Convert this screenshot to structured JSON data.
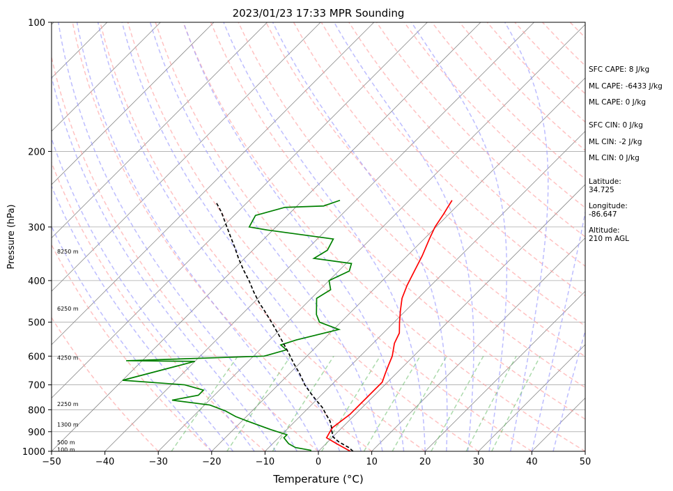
{
  "chart_data": {
    "type": "line",
    "title": "2023/01/23 17:33 MPR Sounding",
    "xlabel": "Temperature (°C)",
    "ylabel": "Pressure (hPa)",
    "xlim": [
      -50,
      50
    ],
    "ylim": [
      1000,
      100
    ],
    "y_scale": "log",
    "xticks": [
      -50,
      -40,
      -30,
      -20,
      -10,
      0,
      10,
      20,
      30,
      40,
      50
    ],
    "yticks": [
      100,
      200,
      300,
      400,
      500,
      600,
      700,
      800,
      900,
      1000
    ],
    "skew": "skew-T log-p",
    "grid": true,
    "series": [
      {
        "role": "temperature",
        "color": "#ff0000",
        "points": [
          [
            6,
            1000
          ],
          [
            5,
            990
          ],
          [
            2,
            960
          ],
          [
            -1,
            930
          ],
          [
            -1.5,
            900
          ],
          [
            -1.8,
            880
          ],
          [
            -1,
            820
          ],
          [
            -1,
            780
          ],
          [
            -1,
            720
          ],
          [
            -1,
            690
          ],
          [
            -2,
            660
          ],
          [
            -3,
            630
          ],
          [
            -4,
            600
          ],
          [
            -6,
            560
          ],
          [
            -7,
            530
          ],
          [
            -9,
            500
          ],
          [
            -11,
            470
          ],
          [
            -13,
            440
          ],
          [
            -14.5,
            410
          ],
          [
            -15.8,
            380
          ],
          [
            -17.2,
            350
          ],
          [
            -19,
            320
          ],
          [
            -20.2,
            300
          ],
          [
            -21,
            280
          ],
          [
            -21.5,
            270
          ],
          [
            -22,
            260
          ]
        ]
      },
      {
        "role": "dewpoint",
        "color": "#008000",
        "points": [
          [
            -1.5,
            995
          ],
          [
            -5,
            980
          ],
          [
            -7,
            960
          ],
          [
            -9,
            930
          ],
          [
            -9,
            915
          ],
          [
            -13,
            890
          ],
          [
            -19,
            850
          ],
          [
            -22,
            830
          ],
          [
            -25,
            805
          ],
          [
            -29,
            780
          ],
          [
            -37,
            760
          ],
          [
            -33,
            740
          ],
          [
            -33,
            720
          ],
          [
            -37.5,
            700
          ],
          [
            -50,
            683
          ],
          [
            -40,
            617
          ],
          [
            -53,
            615
          ],
          [
            -28,
            600
          ],
          [
            -25,
            580
          ],
          [
            -27,
            565
          ],
          [
            -25,
            550
          ],
          [
            -19,
            520
          ],
          [
            -24,
            500
          ],
          [
            -26,
            480
          ],
          [
            -29,
            440
          ],
          [
            -28,
            420
          ],
          [
            -30,
            400
          ],
          [
            -28,
            380
          ],
          [
            -29,
            365
          ],
          [
            -37,
            355
          ],
          [
            -36,
            340
          ],
          [
            -37,
            320
          ],
          [
            -51,
            305
          ],
          [
            -55,
            300
          ],
          [
            -56,
            282
          ],
          [
            -52,
            270
          ],
          [
            -45,
            268
          ],
          [
            -43,
            260
          ]
        ]
      },
      {
        "role": "parcel",
        "color": "#000000",
        "points": [
          [
            6.5,
            1000
          ],
          [
            5,
            980
          ],
          [
            2,
            950
          ],
          [
            0,
            925
          ],
          [
            -1.6,
            890
          ],
          [
            -2,
            880
          ],
          [
            -3.5,
            850
          ],
          [
            -5.5,
            820
          ],
          [
            -7.5,
            790
          ],
          [
            -10,
            760
          ],
          [
            -12.5,
            730
          ],
          [
            -15,
            700
          ],
          [
            -18,
            660
          ],
          [
            -21,
            625
          ],
          [
            -24,
            590
          ],
          [
            -27,
            558
          ],
          [
            -30,
            528
          ],
          [
            -33,
            500
          ],
          [
            -36,
            474
          ],
          [
            -39,
            450
          ],
          [
            -42,
            425
          ],
          [
            -45,
            400
          ],
          [
            -48,
            378
          ],
          [
            -51,
            356
          ],
          [
            -54,
            334
          ],
          [
            -57,
            314
          ],
          [
            -60,
            295
          ],
          [
            -63,
            277
          ],
          [
            -66,
            262
          ]
        ]
      }
    ],
    "height_labels": [
      "100 m",
      "500 m",
      "1300 m",
      "2250 m",
      "4250 m",
      "6250 m",
      "8250 m"
    ],
    "height_label_pressures": [
      990,
      953,
      866,
      775,
      605,
      465,
      342
    ],
    "background_lines": {
      "isotherm_color": "#888888",
      "dry_adiabat_color": "#ff9999",
      "moist_adiabat_color": "#9999ff",
      "mixing_ratio_color": "#66bb66"
    }
  },
  "annotations": {
    "sfc_cape": "SFC CAPE: 8 J/kg",
    "ml_cape_1": "ML CAPE: -6433 J/kg",
    "ml_cape_2": "ML CAPE: 0 J/kg",
    "sfc_cin": "SFC CIN: 0 J/kg",
    "ml_cin_1": "ML CIN: -2 J/kg",
    "ml_cin_2": "ML CIN: 0 J/kg",
    "latitude": "Latitude:\n34.725",
    "longitude": "Longitude:\n-86.647",
    "altitude": "Altitude:\n210 m AGL"
  }
}
